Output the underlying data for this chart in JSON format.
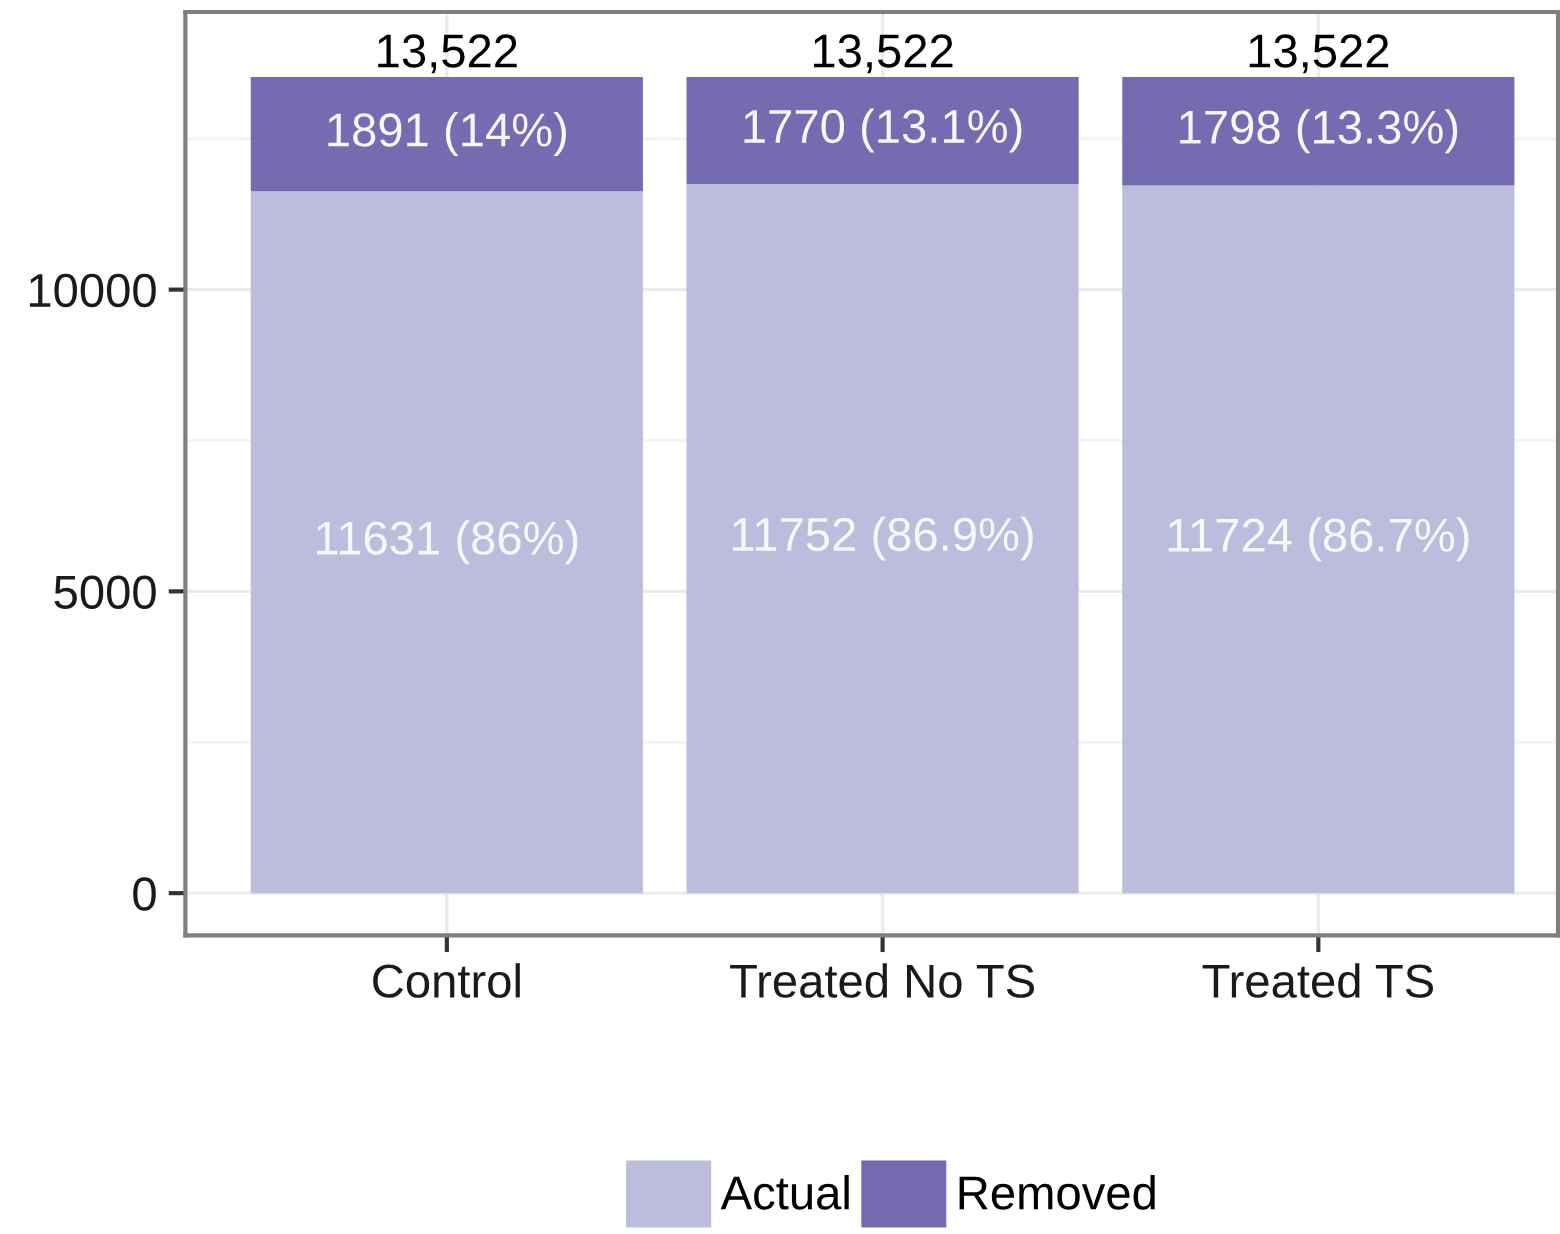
{
  "chart_data": {
    "type": "bar",
    "stacked": true,
    "categories": [
      "Control",
      "Treated No TS",
      "Treated TS"
    ],
    "series": [
      {
        "name": "Actual",
        "color": "#bcbddc",
        "values": [
          11631,
          11752,
          11724
        ],
        "value_labels": [
          "11631 (86%)",
          "11752 (86.9%)",
          "11724 (86.7%)"
        ]
      },
      {
        "name": "Removed",
        "color": "#756bb1",
        "values": [
          1891,
          1770,
          1798
        ],
        "value_labels": [
          "1891 (14%)",
          "1770 (13.1%)",
          "1798 (13.3%)"
        ]
      }
    ],
    "totals": [
      "13,522",
      "13,522",
      "13,522"
    ],
    "ylim": [
      -700,
      14600
    ],
    "yticks": [
      0,
      5000,
      10000
    ],
    "grid": true,
    "legend": "bottom"
  }
}
